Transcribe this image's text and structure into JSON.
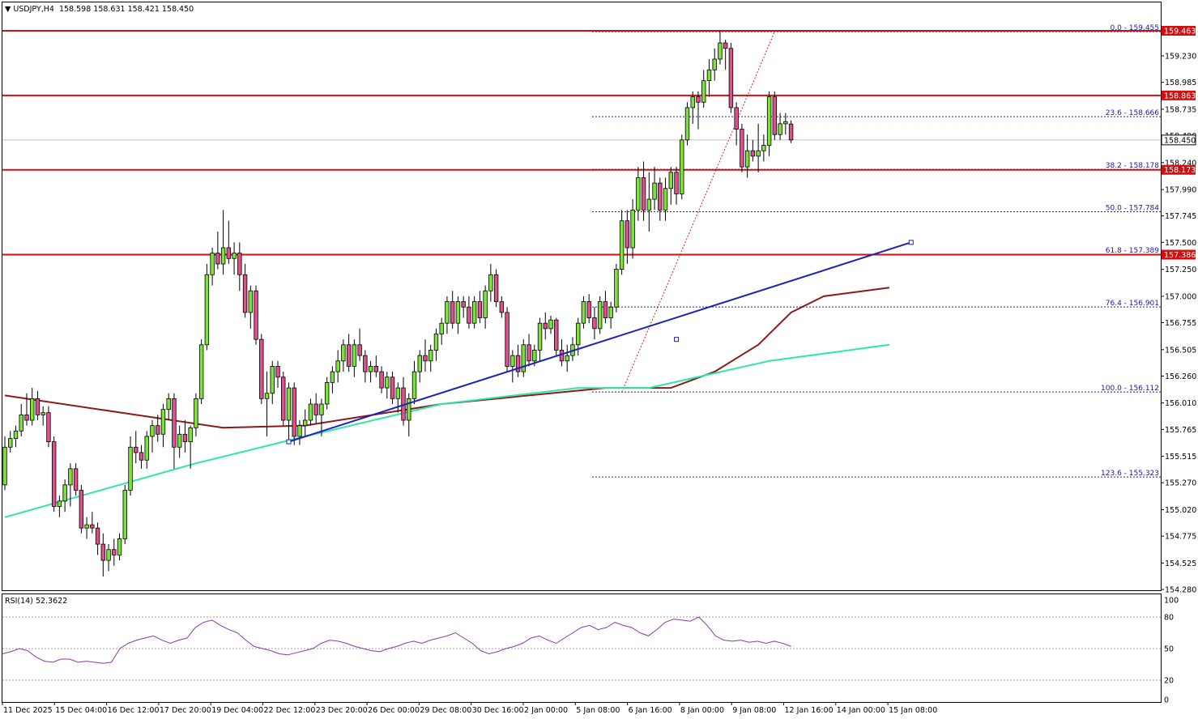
{
  "chart_data": {
    "type": "candlestick",
    "header": {
      "symbol": "USDJPY,H4",
      "ohlc": "158.598 158.631 158.421 158.450"
    },
    "y_ticks": [
      "159.230",
      "158.985",
      "158.735",
      "158.490",
      "158.240",
      "157.990",
      "157.745",
      "157.500",
      "157.250",
      "157.000",
      "156.755",
      "156.505",
      "156.260",
      "156.010",
      "155.765",
      "155.515",
      "155.270",
      "155.020",
      "154.775",
      "154.525",
      "154.280"
    ],
    "ylim": [
      154.22,
      159.56
    ],
    "x_tick_labels": [
      "11 Dec 2025",
      "15 Dec 04:00",
      "16 Dec 12:00",
      "17 Dec 20:00",
      "19 Dec 04:00",
      "22 Dec 12:00",
      "23 Dec 20:00",
      "26 Dec 00:00",
      "29 Dec 08:00",
      "30 Dec 16:00",
      "2 Jan 00:00",
      "5 Jan 08:00",
      "6 Jan 16:00",
      "8 Jan 00:00",
      "9 Jan 08:00",
      "12 Jan 16:00",
      "14 Jan 00:00",
      "15 Jan 08:00"
    ],
    "candles": [
      [
        155.25,
        155.7,
        155.2,
        155.6
      ],
      [
        155.6,
        155.75,
        155.55,
        155.68
      ],
      [
        155.68,
        155.8,
        155.6,
        155.75
      ],
      [
        155.75,
        156.0,
        155.7,
        155.9
      ],
      [
        155.9,
        156.1,
        155.8,
        155.85
      ],
      [
        155.85,
        156.15,
        155.8,
        156.05
      ],
      [
        156.05,
        156.12,
        155.85,
        155.9
      ],
      [
        155.9,
        155.98,
        155.8,
        155.92
      ],
      [
        155.92,
        155.98,
        155.6,
        155.65
      ],
      [
        155.65,
        155.7,
        155.0,
        155.05
      ],
      [
        155.05,
        155.15,
        154.95,
        155.1
      ],
      [
        155.1,
        155.3,
        155.0,
        155.25
      ],
      [
        155.25,
        155.45,
        155.05,
        155.4
      ],
      [
        155.4,
        155.45,
        155.15,
        155.2
      ],
      [
        155.2,
        155.25,
        154.8,
        154.85
      ],
      [
        154.85,
        154.95,
        154.75,
        154.88
      ],
      [
        154.88,
        155.0,
        154.8,
        154.85
      ],
      [
        154.85,
        154.9,
        154.6,
        154.7
      ],
      [
        154.7,
        154.8,
        154.4,
        154.55
      ],
      [
        154.55,
        154.7,
        154.45,
        154.65
      ],
      [
        154.65,
        154.75,
        154.5,
        154.6
      ],
      [
        154.6,
        154.8,
        154.55,
        154.75
      ],
      [
        154.75,
        155.25,
        154.7,
        155.2
      ],
      [
        155.2,
        155.7,
        155.15,
        155.6
      ],
      [
        155.6,
        155.75,
        155.45,
        155.55
      ],
      [
        155.55,
        155.62,
        155.4,
        155.48
      ],
      [
        155.48,
        155.75,
        155.4,
        155.7
      ],
      [
        155.7,
        155.85,
        155.55,
        155.8
      ],
      [
        155.8,
        155.9,
        155.65,
        155.72
      ],
      [
        155.72,
        156.0,
        155.6,
        155.95
      ],
      [
        155.95,
        156.1,
        155.85,
        156.05
      ],
      [
        156.05,
        156.1,
        155.4,
        155.6
      ],
      [
        155.6,
        155.8,
        155.5,
        155.72
      ],
      [
        155.72,
        155.85,
        155.55,
        155.65
      ],
      [
        155.65,
        155.8,
        155.4,
        155.78
      ],
      [
        155.78,
        156.1,
        155.7,
        156.05
      ],
      [
        156.05,
        156.6,
        156.0,
        156.55
      ],
      [
        156.55,
        157.3,
        156.5,
        157.2
      ],
      [
        157.2,
        157.45,
        157.1,
        157.4
      ],
      [
        157.4,
        157.6,
        157.25,
        157.3
      ],
      [
        157.3,
        157.8,
        157.2,
        157.45
      ],
      [
        157.45,
        157.7,
        157.3,
        157.35
      ],
      [
        157.35,
        157.5,
        157.2,
        157.4
      ],
      [
        157.4,
        157.5,
        157.05,
        157.2
      ],
      [
        157.2,
        157.3,
        156.8,
        156.85
      ],
      [
        156.85,
        157.1,
        156.7,
        157.05
      ],
      [
        157.05,
        157.1,
        156.55,
        156.6
      ],
      [
        156.6,
        156.65,
        156.0,
        156.05
      ],
      [
        156.05,
        156.3,
        155.7,
        156.1
      ],
      [
        156.1,
        156.4,
        156.0,
        156.35
      ],
      [
        156.35,
        156.4,
        156.15,
        156.25
      ],
      [
        156.25,
        156.3,
        155.8,
        155.85
      ],
      [
        155.85,
        156.2,
        155.65,
        156.15
      ],
      [
        156.15,
        156.2,
        155.62,
        155.7
      ],
      [
        155.7,
        155.85,
        155.62,
        155.8
      ],
      [
        155.8,
        155.95,
        155.7,
        155.85
      ],
      [
        155.85,
        156.05,
        155.8,
        156.0
      ],
      [
        156.0,
        156.1,
        155.82,
        155.9
      ],
      [
        155.9,
        156.05,
        155.7,
        156.0
      ],
      [
        156.0,
        156.25,
        155.95,
        156.2
      ],
      [
        156.2,
        156.35,
        156.1,
        156.3
      ],
      [
        156.3,
        156.5,
        156.2,
        156.4
      ],
      [
        156.4,
        156.6,
        156.3,
        156.55
      ],
      [
        156.55,
        156.65,
        156.3,
        156.35
      ],
      [
        156.35,
        156.6,
        156.25,
        156.55
      ],
      [
        156.55,
        156.7,
        156.4,
        156.45
      ],
      [
        156.45,
        156.5,
        156.2,
        156.3
      ],
      [
        156.3,
        156.4,
        156.2,
        156.35
      ],
      [
        156.35,
        156.45,
        156.25,
        156.3
      ],
      [
        156.3,
        156.35,
        156.1,
        156.15
      ],
      [
        156.15,
        156.3,
        156.05,
        156.25
      ],
      [
        156.25,
        156.3,
        156.0,
        156.05
      ],
      [
        156.05,
        156.2,
        155.92,
        156.15
      ],
      [
        156.15,
        156.25,
        155.8,
        155.85
      ],
      [
        155.85,
        156.1,
        155.7,
        156.05
      ],
      [
        156.05,
        156.4,
        156.0,
        156.3
      ],
      [
        156.3,
        156.5,
        156.2,
        156.45
      ],
      [
        156.45,
        156.6,
        156.3,
        156.4
      ],
      [
        156.4,
        156.55,
        156.3,
        156.5
      ],
      [
        156.5,
        156.7,
        156.4,
        156.65
      ],
      [
        156.65,
        156.8,
        156.55,
        156.75
      ],
      [
        156.75,
        157.0,
        156.65,
        156.95
      ],
      [
        156.95,
        157.05,
        156.7,
        156.75
      ],
      [
        156.75,
        157.0,
        156.65,
        156.95
      ],
      [
        156.95,
        157.0,
        156.8,
        156.9
      ],
      [
        156.9,
        157.0,
        156.7,
        156.75
      ],
      [
        156.75,
        157.0,
        156.7,
        156.95
      ],
      [
        156.95,
        157.05,
        156.75,
        156.8
      ],
      [
        156.8,
        157.1,
        156.7,
        157.05
      ],
      [
        157.05,
        157.3,
        156.95,
        157.2
      ],
      [
        157.2,
        157.25,
        156.9,
        156.95
      ],
      [
        156.95,
        157.0,
        156.8,
        156.85
      ],
      [
        156.85,
        156.9,
        156.3,
        156.35
      ],
      [
        156.35,
        156.5,
        156.2,
        156.45
      ],
      [
        156.45,
        156.55,
        156.25,
        156.3
      ],
      [
        156.3,
        156.6,
        156.25,
        156.55
      ],
      [
        156.55,
        156.65,
        156.35,
        156.4
      ],
      [
        156.4,
        156.55,
        156.35,
        156.5
      ],
      [
        156.5,
        156.8,
        156.4,
        156.75
      ],
      [
        156.75,
        156.85,
        156.6,
        156.7
      ],
      [
        156.7,
        156.82,
        156.65,
        156.78
      ],
      [
        156.78,
        156.8,
        156.45,
        156.5
      ],
      [
        156.5,
        156.6,
        156.35,
        156.4
      ],
      [
        156.4,
        156.55,
        156.3,
        156.45
      ],
      [
        156.45,
        156.62,
        156.4,
        156.55
      ],
      [
        156.55,
        156.8,
        156.45,
        156.75
      ],
      [
        156.75,
        157.0,
        156.7,
        156.95
      ],
      [
        156.95,
        157.02,
        156.75,
        156.8
      ],
      [
        156.8,
        156.9,
        156.6,
        156.7
      ],
      [
        156.7,
        157.0,
        156.65,
        156.95
      ],
      [
        156.95,
        157.05,
        156.75,
        156.8
      ],
      [
        156.8,
        156.95,
        156.7,
        156.9
      ],
      [
        156.9,
        157.3,
        156.85,
        157.25
      ],
      [
        157.25,
        157.8,
        157.2,
        157.7
      ],
      [
        157.7,
        157.8,
        157.3,
        157.45
      ],
      [
        157.45,
        157.9,
        157.35,
        157.8
      ],
      [
        157.8,
        158.2,
        157.7,
        158.1
      ],
      [
        158.1,
        158.25,
        157.7,
        157.8
      ],
      [
        157.8,
        158.15,
        157.6,
        157.9
      ],
      [
        157.9,
        158.2,
        157.8,
        158.05
      ],
      [
        158.05,
        158.1,
        157.7,
        157.8
      ],
      [
        157.8,
        158.1,
        157.7,
        158.0
      ],
      [
        158.0,
        158.2,
        157.85,
        158.15
      ],
      [
        158.15,
        158.2,
        157.85,
        157.95
      ],
      [
        157.95,
        158.5,
        157.9,
        158.45
      ],
      [
        158.45,
        158.8,
        158.4,
        158.75
      ],
      [
        158.75,
        158.9,
        158.6,
        158.85
      ],
      [
        158.85,
        158.9,
        158.55,
        158.8
      ],
      [
        158.8,
        159.1,
        158.75,
        159.0
      ],
      [
        159.0,
        159.2,
        158.85,
        159.1
      ],
      [
        159.1,
        159.3,
        159.0,
        159.2
      ],
      [
        159.2,
        159.46,
        159.15,
        159.35
      ],
      [
        159.35,
        159.38,
        159.1,
        159.3
      ],
      [
        159.3,
        159.35,
        158.7,
        158.75
      ],
      [
        158.75,
        158.8,
        158.4,
        158.55
      ],
      [
        158.55,
        158.6,
        158.15,
        158.2
      ],
      [
        158.2,
        158.5,
        158.1,
        158.35
      ],
      [
        158.35,
        158.45,
        158.25,
        158.3
      ],
      [
        158.3,
        158.6,
        158.15,
        158.35
      ],
      [
        158.35,
        158.5,
        158.25,
        158.4
      ],
      [
        158.4,
        158.9,
        158.3,
        158.85
      ],
      [
        158.85,
        158.9,
        158.45,
        158.5
      ],
      [
        158.5,
        158.7,
        158.45,
        158.6
      ],
      [
        158.6,
        158.7,
        158.5,
        158.62
      ],
      [
        158.598,
        158.631,
        158.421,
        158.45
      ]
    ],
    "ma_brown": [
      [
        156.08,
        0
      ],
      [
        155.78,
        40
      ],
      [
        155.8,
        55
      ],
      [
        156.0,
        80
      ],
      [
        156.15,
        110
      ],
      [
        156.15,
        122
      ],
      [
        156.3,
        130
      ],
      [
        156.55,
        138
      ],
      [
        156.85,
        144
      ],
      [
        157.0,
        150
      ],
      [
        157.08,
        162
      ]
    ],
    "ma_green": [
      [
        154.95,
        0
      ],
      [
        155.45,
        35
      ],
      [
        155.7,
        55
      ],
      [
        156.0,
        80
      ],
      [
        156.15,
        105
      ],
      [
        156.15,
        118
      ],
      [
        156.4,
        140
      ],
      [
        156.55,
        162
      ]
    ],
    "trendline": {
      "p1": [
        155.65,
        52
      ],
      "p2": [
        157.5,
        166
      ],
      "mid_marker": [
        156.6,
        123
      ]
    },
    "horizontal_levels": [
      {
        "price": 159.463,
        "label": "159.463"
      },
      {
        "price": 158.863,
        "label": "158.863"
      },
      {
        "price": 158.173,
        "label": "158.173"
      },
      {
        "price": 157.386,
        "label": "157.386"
      }
    ],
    "fib_levels": [
      {
        "price": 159.455,
        "label": "0.0 - 159.455"
      },
      {
        "price": 158.666,
        "label": "23.6 - 158.666"
      },
      {
        "price": 158.178,
        "label": "38.2 - 158.178"
      },
      {
        "price": 157.784,
        "label": "50.0 - 157.784"
      },
      {
        "price": 157.389,
        "label": "61.8 - 157.389"
      },
      {
        "price": 156.901,
        "label": "76.4 - 156.901"
      },
      {
        "price": 156.112,
        "label": "100.0 - 156.112"
      },
      {
        "price": 155.323,
        "label": "123.6 - 155.323"
      }
    ],
    "fib_diagonal": {
      "from": [
        156.112,
        113
      ],
      "to": [
        159.455,
        141
      ]
    },
    "current_price": {
      "price": 158.45,
      "label": "158.450"
    },
    "rsi": {
      "label": "RSI(14) 52.3622",
      "ticks": [
        "100",
        "80",
        "50",
        "20",
        "0"
      ],
      "levels": [
        80,
        50,
        20
      ],
      "values": [
        45,
        47,
        50,
        48,
        42,
        38,
        37,
        40,
        40,
        37,
        38,
        37,
        36,
        37,
        50,
        55,
        58,
        60,
        62,
        58,
        55,
        58,
        60,
        70,
        75,
        77,
        72,
        68,
        65,
        58,
        52,
        50,
        48,
        45,
        44,
        46,
        48,
        50,
        55,
        58,
        57,
        55,
        52,
        50,
        48,
        47,
        50,
        52,
        55,
        57,
        55,
        58,
        60,
        62,
        65,
        60,
        55,
        48,
        45,
        47,
        50,
        52,
        55,
        60,
        62,
        58,
        55,
        60,
        65,
        70,
        72,
        68,
        70,
        75,
        72,
        70,
        65,
        62,
        68,
        75,
        78,
        77,
        76,
        80,
        72,
        62,
        58,
        57,
        58,
        56,
        57,
        55,
        57,
        55,
        52
      ]
    }
  }
}
